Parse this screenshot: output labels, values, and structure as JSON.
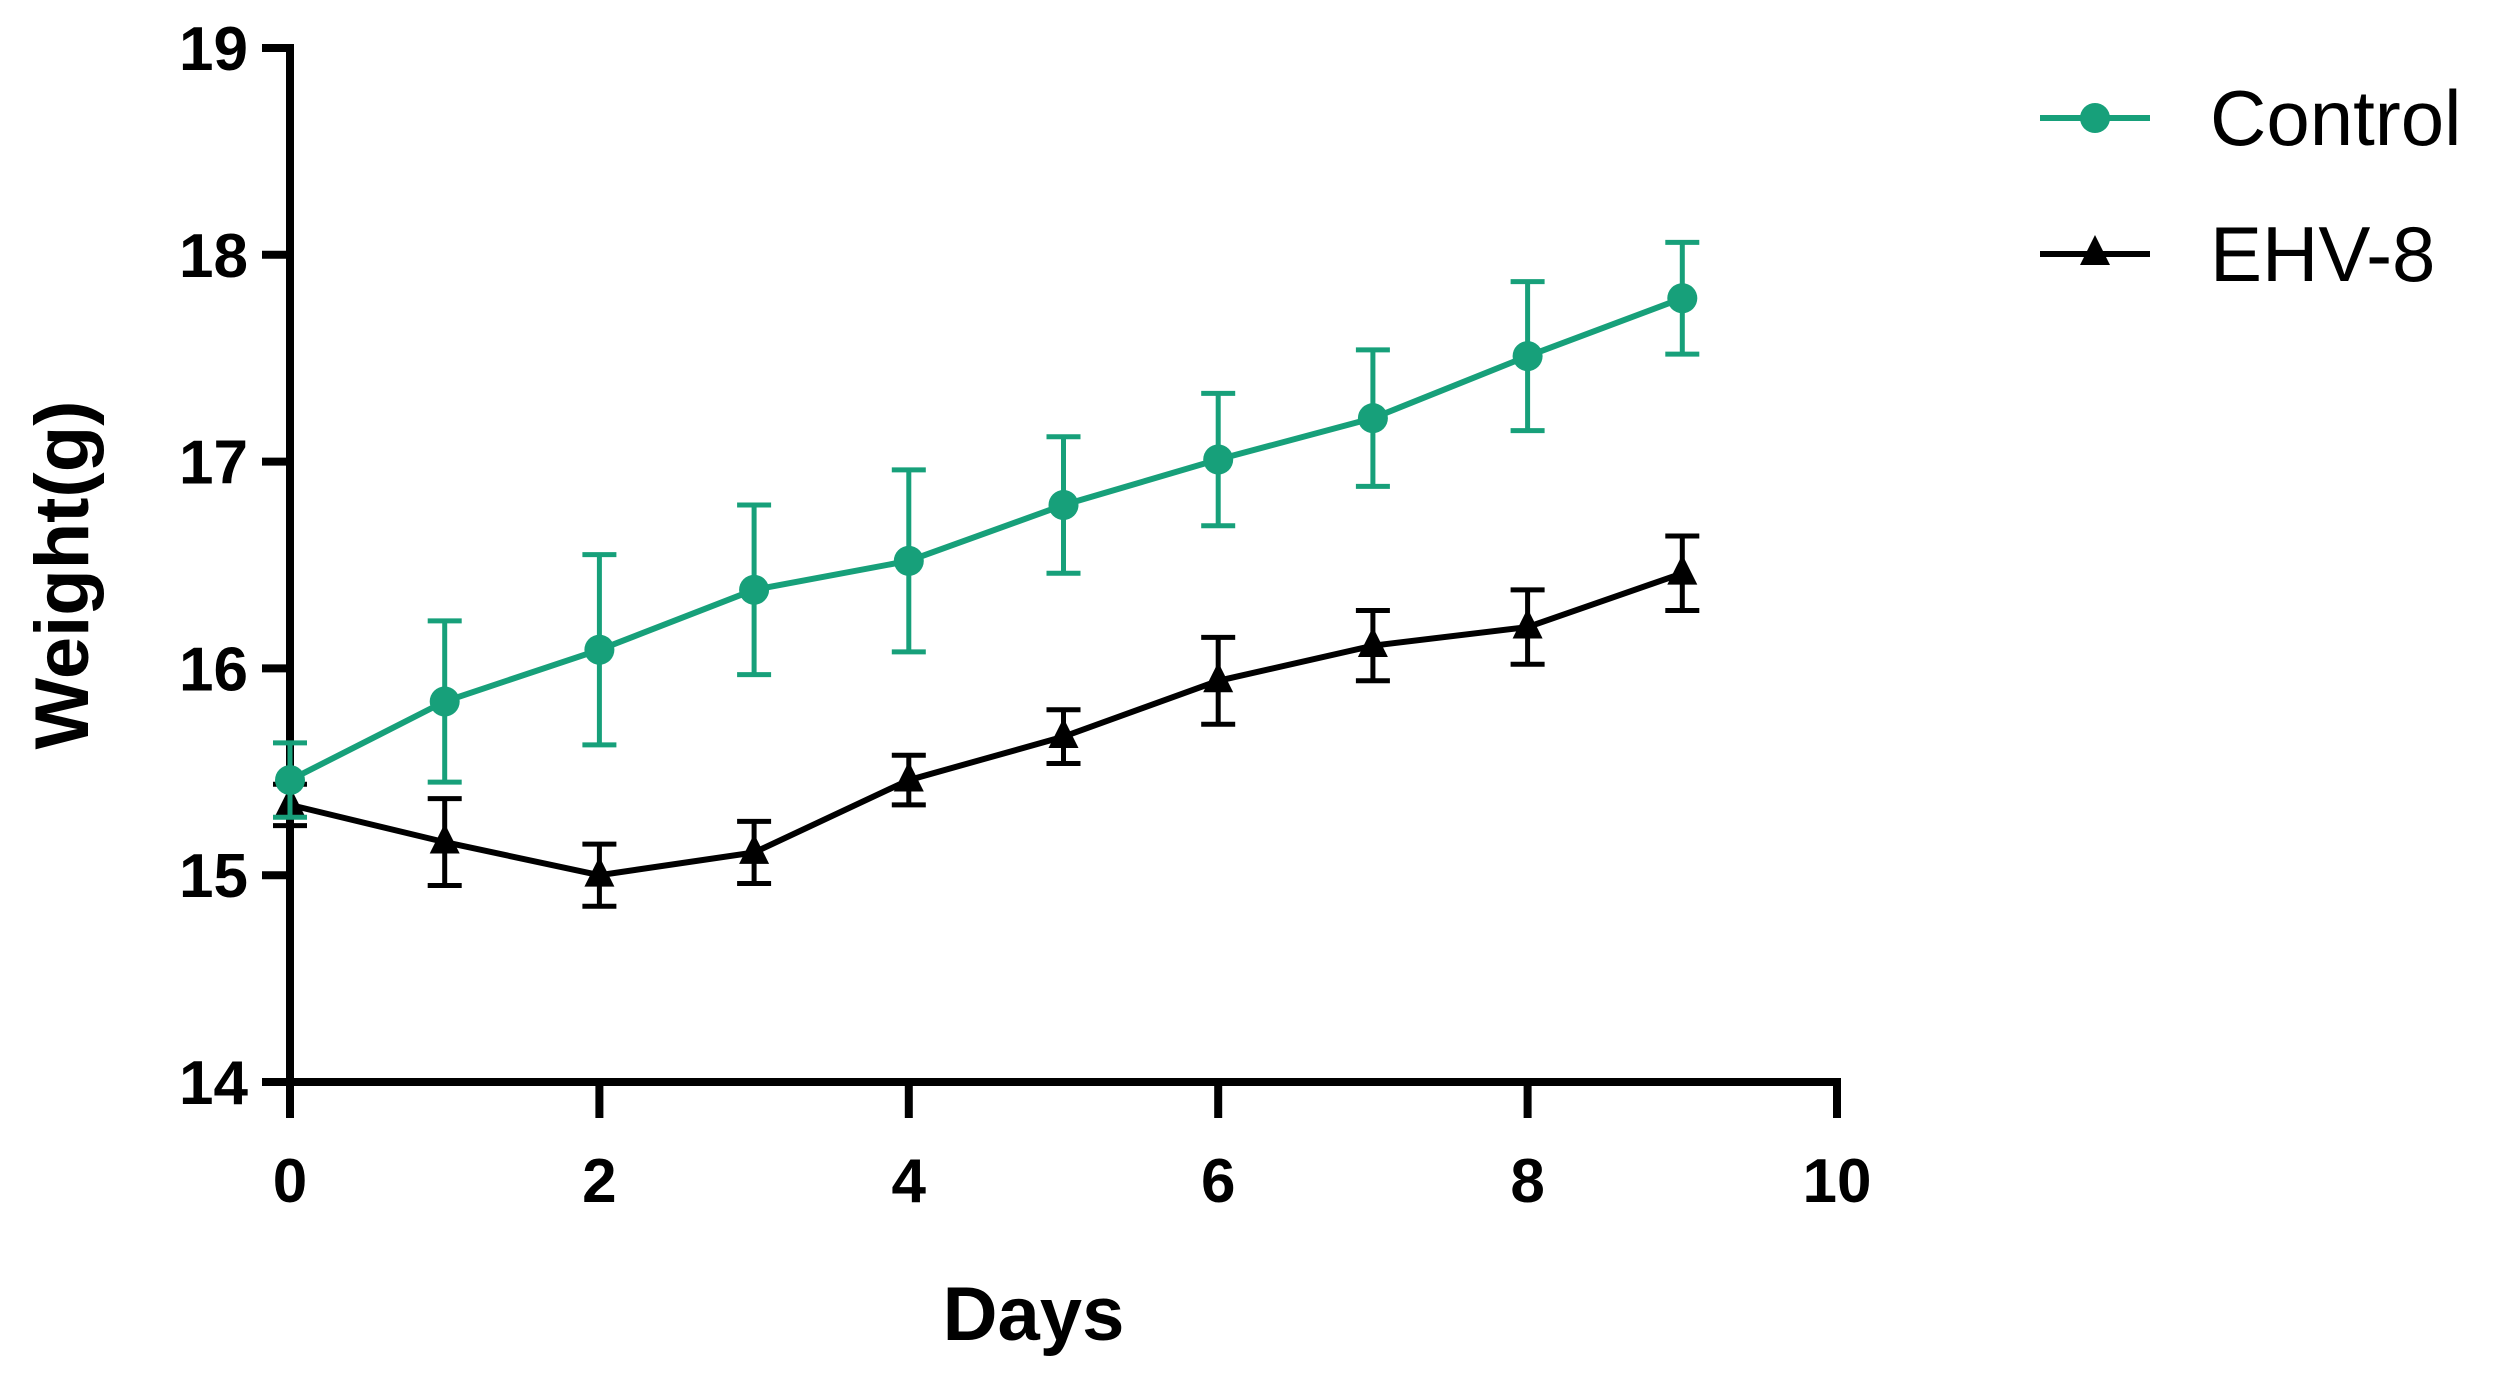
{
  "chart_data": {
    "type": "line",
    "title": "",
    "xlabel": "Days",
    "ylabel": "Weight(g)",
    "xlim": [
      0,
      10
    ],
    "ylim": [
      14,
      19
    ],
    "xticks": [
      0,
      2,
      4,
      6,
      8,
      10
    ],
    "yticks": [
      14,
      15,
      16,
      17,
      18,
      19
    ],
    "xtick_labels": [
      "0",
      "2",
      "4",
      "6",
      "8",
      "10"
    ],
    "ytick_labels": [
      "14",
      "15",
      "16",
      "17",
      "18",
      "19"
    ],
    "grid": false,
    "legend_position": "top-right",
    "x": [
      0,
      1,
      2,
      3,
      4,
      5,
      6,
      7,
      8,
      9
    ],
    "series": [
      {
        "name": "Control",
        "color": "#17a07a",
        "marker": "circle",
        "values": [
          15.46,
          15.84,
          16.09,
          16.38,
          16.52,
          16.79,
          17.01,
          17.21,
          17.51,
          17.79
        ],
        "error": [
          0.18,
          0.39,
          0.46,
          0.41,
          0.44,
          0.33,
          0.32,
          0.33,
          0.36,
          0.27
        ]
      },
      {
        "name": "EHV-8",
        "color": "#000000",
        "marker": "triangle",
        "values": [
          15.34,
          15.16,
          15.0,
          15.11,
          15.46,
          15.67,
          15.94,
          16.11,
          16.2,
          16.46
        ],
        "error": [
          0.1,
          0.21,
          0.15,
          0.15,
          0.12,
          0.13,
          0.21,
          0.17,
          0.18,
          0.18
        ]
      }
    ]
  }
}
